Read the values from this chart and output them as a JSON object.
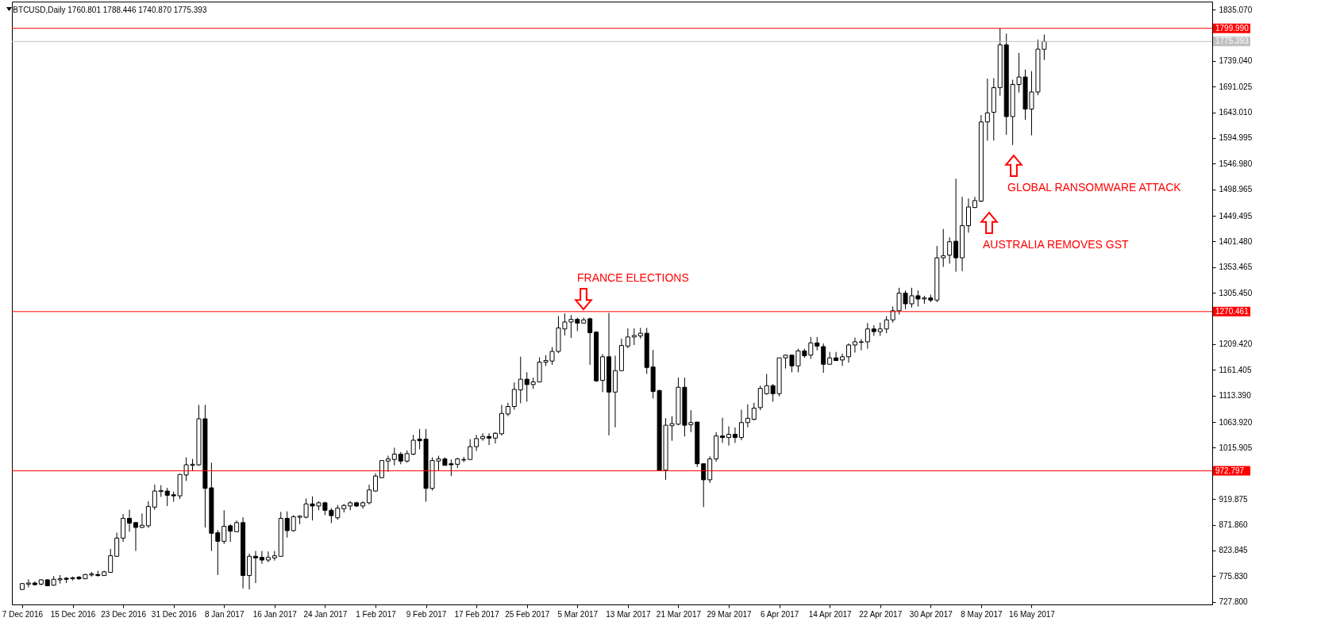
{
  "chart_data": {
    "type": "candlestick",
    "title": "BTCUSD,Daily  1760.801 1788.446 1740.870 1775.393",
    "x": [
      "2016-12-07",
      "2016-12-08",
      "2016-12-09",
      "2016-12-10",
      "2016-12-11",
      "2016-12-12",
      "2016-12-13",
      "2016-12-14",
      "2016-12-15",
      "2016-12-16",
      "2016-12-17",
      "2016-12-18",
      "2016-12-19",
      "2016-12-20",
      "2016-12-21",
      "2016-12-22",
      "2016-12-23",
      "2016-12-24",
      "2016-12-25",
      "2016-12-26",
      "2016-12-27",
      "2016-12-28",
      "2016-12-29",
      "2016-12-30",
      "2016-12-31",
      "2017-01-01",
      "2017-01-02",
      "2017-01-03",
      "2017-01-04",
      "2017-01-05",
      "2017-01-06",
      "2017-01-07",
      "2017-01-08",
      "2017-01-09",
      "2017-01-10",
      "2017-01-11",
      "2017-01-12",
      "2017-01-13",
      "2017-01-14",
      "2017-01-15",
      "2017-01-16",
      "2017-01-17",
      "2017-01-18",
      "2017-01-19",
      "2017-01-20",
      "2017-01-21",
      "2017-01-22",
      "2017-01-23",
      "2017-01-24",
      "2017-01-25",
      "2017-01-26",
      "2017-01-27",
      "2017-01-28",
      "2017-01-29",
      "2017-01-30",
      "2017-01-31",
      "2017-02-01",
      "2017-02-02",
      "2017-02-03",
      "2017-02-04",
      "2017-02-05",
      "2017-02-06",
      "2017-02-07",
      "2017-02-08",
      "2017-02-09",
      "2017-02-10",
      "2017-02-11",
      "2017-02-12",
      "2017-02-13",
      "2017-02-14",
      "2017-02-15",
      "2017-02-16",
      "2017-02-17",
      "2017-02-18",
      "2017-02-19",
      "2017-02-20",
      "2017-02-21",
      "2017-02-22",
      "2017-02-23",
      "2017-02-24",
      "2017-02-25",
      "2017-02-26",
      "2017-02-27",
      "2017-02-28",
      "2017-03-01",
      "2017-03-02",
      "2017-03-03",
      "2017-03-04",
      "2017-03-05",
      "2017-03-06",
      "2017-03-07",
      "2017-03-08",
      "2017-03-09",
      "2017-03-10",
      "2017-03-11",
      "2017-03-12",
      "2017-03-13",
      "2017-03-14",
      "2017-03-15",
      "2017-03-16",
      "2017-03-17",
      "2017-03-18",
      "2017-03-19",
      "2017-03-20",
      "2017-03-21",
      "2017-03-22",
      "2017-03-23",
      "2017-03-24",
      "2017-03-25",
      "2017-03-26",
      "2017-03-27",
      "2017-03-28",
      "2017-03-29",
      "2017-03-30",
      "2017-03-31",
      "2017-04-01",
      "2017-04-02",
      "2017-04-03",
      "2017-04-04",
      "2017-04-05",
      "2017-04-06",
      "2017-04-07",
      "2017-04-08",
      "2017-04-09",
      "2017-04-10",
      "2017-04-11",
      "2017-04-12",
      "2017-04-13",
      "2017-04-14",
      "2017-04-15",
      "2017-04-16",
      "2017-04-17",
      "2017-04-18",
      "2017-04-19",
      "2017-04-20",
      "2017-04-21",
      "2017-04-22",
      "2017-04-23",
      "2017-04-24",
      "2017-04-25",
      "2017-04-26",
      "2017-04-27",
      "2017-04-28",
      "2017-04-29",
      "2017-04-30",
      "2017-05-01",
      "2017-05-02",
      "2017-05-03",
      "2017-05-04",
      "2017-05-05",
      "2017-05-06",
      "2017-05-07",
      "2017-05-08",
      "2017-05-09",
      "2017-05-10",
      "2017-05-11",
      "2017-05-12",
      "2017-05-13",
      "2017-05-14",
      "2017-05-15",
      "2017-05-16",
      "2017-05-17",
      "2017-05-18"
    ],
    "ohlc": [
      [
        751,
        763,
        750,
        762
      ],
      [
        761,
        770,
        755,
        763
      ],
      [
        763,
        766,
        758,
        760
      ],
      [
        761,
        770,
        759,
        769
      ],
      [
        769,
        770,
        757,
        758
      ],
      [
        759,
        776,
        758,
        770
      ],
      [
        769,
        778,
        762,
        771
      ],
      [
        772,
        774,
        763,
        770
      ],
      [
        771,
        775,
        768,
        773
      ],
      [
        774,
        776,
        769,
        771
      ],
      [
        771,
        780,
        771,
        779
      ],
      [
        778,
        784,
        775,
        780
      ],
      [
        779,
        786,
        775,
        777
      ],
      [
        777,
        786,
        777,
        784
      ],
      [
        783,
        827,
        782,
        814
      ],
      [
        813,
        857,
        812,
        847
      ],
      [
        847,
        892,
        840,
        884
      ],
      [
        884,
        900,
        859,
        875
      ],
      [
        876,
        877,
        823,
        867
      ],
      [
        867,
        893,
        866,
        871
      ],
      [
        870,
        916,
        866,
        906
      ],
      [
        905,
        947,
        900,
        935
      ],
      [
        934,
        946,
        924,
        936
      ],
      [
        935,
        941,
        907,
        927
      ],
      [
        928,
        934,
        915,
        926
      ],
      [
        926,
        967,
        920,
        966
      ],
      [
        965,
        998,
        954,
        984
      ],
      [
        983,
        995,
        973,
        985
      ],
      [
        984,
        1096,
        982,
        1070
      ],
      [
        1070,
        1096,
        867,
        940
      ],
      [
        941,
        988,
        823,
        856
      ],
      [
        857,
        862,
        778,
        841
      ],
      [
        841,
        899,
        836,
        869
      ],
      [
        870,
        873,
        840,
        860
      ],
      [
        859,
        880,
        858,
        876
      ],
      [
        876,
        886,
        753,
        777
      ],
      [
        777,
        818,
        751,
        813
      ],
      [
        813,
        823,
        763,
        810
      ],
      [
        811,
        823,
        799,
        806
      ],
      [
        806,
        822,
        802,
        811
      ],
      [
        810,
        823,
        805,
        814
      ],
      [
        813,
        896,
        812,
        884
      ],
      [
        884,
        897,
        848,
        861
      ],
      [
        861,
        890,
        859,
        887
      ],
      [
        886,
        890,
        873,
        888
      ],
      [
        886,
        921,
        884,
        911
      ],
      [
        911,
        925,
        880,
        907
      ],
      [
        907,
        916,
        899,
        913
      ],
      [
        913,
        915,
        890,
        899
      ],
      [
        899,
        903,
        875,
        889
      ],
      [
        885,
        909,
        881,
        903
      ],
      [
        902,
        911,
        895,
        908
      ],
      [
        907,
        916,
        899,
        913
      ],
      [
        913,
        915,
        905,
        907
      ],
      [
        907,
        916,
        902,
        913
      ],
      [
        913,
        947,
        910,
        937
      ],
      [
        935,
        968,
        934,
        963
      ],
      [
        960,
        992,
        959,
        992
      ],
      [
        991,
        1001,
        971,
        995
      ],
      [
        994,
        1016,
        983,
        1004
      ],
      [
        1004,
        1008,
        985,
        991
      ],
      [
        991,
        1011,
        988,
        1005
      ],
      [
        1004,
        1040,
        1002,
        1030
      ],
      [
        1032,
        1051,
        1013,
        1029
      ],
      [
        1032,
        1051,
        915,
        940
      ],
      [
        940,
        998,
        936,
        992
      ],
      [
        991,
        1001,
        973,
        995
      ],
      [
        995,
        998,
        983,
        983
      ],
      [
        986,
        994,
        963,
        984
      ],
      [
        985,
        997,
        978,
        995
      ],
      [
        993,
        999,
        989,
        994
      ],
      [
        994,
        1032,
        994,
        1018
      ],
      [
        1018,
        1040,
        1010,
        1033
      ],
      [
        1033,
        1043,
        1029,
        1037
      ],
      [
        1037,
        1043,
        1021,
        1034
      ],
      [
        1034,
        1045,
        1024,
        1043
      ],
      [
        1042,
        1096,
        1039,
        1080
      ],
      [
        1079,
        1100,
        1075,
        1093
      ],
      [
        1093,
        1138,
        1087,
        1125
      ],
      [
        1124,
        1186,
        1099,
        1144
      ],
      [
        1144,
        1157,
        1102,
        1134
      ],
      [
        1134,
        1147,
        1126,
        1139
      ],
      [
        1139,
        1185,
        1139,
        1176
      ],
      [
        1176,
        1189,
        1169,
        1179
      ],
      [
        1178,
        1204,
        1171,
        1196
      ],
      [
        1196,
        1262,
        1193,
        1240
      ],
      [
        1238,
        1267,
        1226,
        1251
      ],
      [
        1251,
        1264,
        1221,
        1256
      ],
      [
        1256,
        1259,
        1234,
        1249
      ],
      [
        1249,
        1259,
        1249,
        1255
      ],
      [
        1257,
        1259,
        1171,
        1231
      ],
      [
        1232,
        1234,
        1139,
        1141
      ],
      [
        1142,
        1191,
        1120,
        1186
      ],
      [
        1186,
        1268,
        1039,
        1120
      ],
      [
        1120,
        1188,
        1054,
        1160
      ],
      [
        1160,
        1220,
        1160,
        1207
      ],
      [
        1206,
        1239,
        1202,
        1223
      ],
      [
        1223,
        1239,
        1208,
        1226
      ],
      [
        1225,
        1240,
        1220,
        1230
      ],
      [
        1230,
        1240,
        1154,
        1166
      ],
      [
        1167,
        1199,
        1108,
        1121
      ],
      [
        1123,
        1124,
        973,
        973
      ],
      [
        974,
        1071,
        956,
        1058
      ],
      [
        1057,
        1075,
        1029,
        1061
      ],
      [
        1060,
        1147,
        1058,
        1129
      ],
      [
        1129,
        1147,
        1037,
        1058
      ],
      [
        1059,
        1086,
        1045,
        1063
      ],
      [
        1064,
        1064,
        980,
        986
      ],
      [
        986,
        986,
        905,
        956
      ],
      [
        956,
        1000,
        950,
        995
      ],
      [
        995,
        1045,
        990,
        1038
      ],
      [
        1038,
        1072,
        1025,
        1035
      ],
      [
        1035,
        1056,
        1020,
        1041
      ],
      [
        1041,
        1054,
        1025,
        1035
      ],
      [
        1035,
        1087,
        1030,
        1063
      ],
      [
        1063,
        1097,
        1054,
        1071
      ],
      [
        1069,
        1100,
        1067,
        1090
      ],
      [
        1091,
        1132,
        1086,
        1127
      ],
      [
        1117,
        1154,
        1115,
        1132
      ],
      [
        1132,
        1135,
        1102,
        1117
      ],
      [
        1117,
        1184,
        1112,
        1184
      ],
      [
        1184,
        1190,
        1164,
        1189
      ],
      [
        1189,
        1190,
        1157,
        1169
      ],
      [
        1169,
        1201,
        1157,
        1197
      ],
      [
        1197,
        1201,
        1184,
        1188
      ],
      [
        1189,
        1223,
        1182,
        1212
      ],
      [
        1212,
        1223,
        1198,
        1206
      ],
      [
        1205,
        1211,
        1156,
        1172
      ],
      [
        1172,
        1195,
        1172,
        1184
      ],
      [
        1184,
        1195,
        1178,
        1179
      ],
      [
        1180,
        1192,
        1169,
        1186
      ],
      [
        1186,
        1211,
        1175,
        1208
      ],
      [
        1208,
        1222,
        1194,
        1214
      ],
      [
        1213,
        1219,
        1198,
        1214
      ],
      [
        1214,
        1249,
        1201,
        1238
      ],
      [
        1238,
        1245,
        1225,
        1233
      ],
      [
        1233,
        1250,
        1225,
        1238
      ],
      [
        1238,
        1262,
        1230,
        1255
      ],
      [
        1255,
        1280,
        1250,
        1272
      ],
      [
        1272,
        1315,
        1265,
        1305
      ],
      [
        1305,
        1310,
        1275,
        1285
      ],
      [
        1285,
        1315,
        1278,
        1300
      ],
      [
        1300,
        1310,
        1280,
        1294
      ],
      [
        1294,
        1300,
        1285,
        1296
      ],
      [
        1296,
        1302,
        1288,
        1292
      ],
      [
        1292,
        1393,
        1288,
        1371
      ],
      [
        1371,
        1425,
        1354,
        1375
      ],
      [
        1376,
        1409,
        1360,
        1401
      ],
      [
        1402,
        1519,
        1345,
        1371
      ],
      [
        1371,
        1485,
        1346,
        1431
      ],
      [
        1431,
        1482,
        1418,
        1466
      ],
      [
        1465,
        1485,
        1464,
        1478
      ],
      [
        1477,
        1638,
        1475,
        1625
      ],
      [
        1625,
        1706,
        1590,
        1642
      ],
      [
        1643,
        1707,
        1590,
        1689
      ],
      [
        1689,
        1799.99,
        1674,
        1769
      ],
      [
        1769,
        1790,
        1601,
        1635
      ],
      [
        1635,
        1704,
        1582,
        1695
      ],
      [
        1695,
        1754,
        1680,
        1709
      ],
      [
        1709,
        1723,
        1629,
        1649
      ],
      [
        1649,
        1720,
        1600,
        1681
      ],
      [
        1681,
        1779,
        1675,
        1761
      ],
      [
        1760.801,
        1788.446,
        1740.87,
        1775.393
      ]
    ],
    "xlim": [
      "2016-12-06",
      "2017-06-13"
    ],
    "xticks": [
      {
        "value": "2016-12-07",
        "label": "7 Dec 2016"
      },
      {
        "value": "2016-12-15",
        "label": "15 Dec 2016"
      },
      {
        "value": "2016-12-23",
        "label": "23 Dec 2016"
      },
      {
        "value": "2016-12-31",
        "label": "31 Dec 2016"
      },
      {
        "value": "2017-01-08",
        "label": "8 Jan 2017"
      },
      {
        "value": "2017-01-16",
        "label": "16 Jan 2017"
      },
      {
        "value": "2017-01-24",
        "label": "24 Jan 2017"
      },
      {
        "value": "2017-02-01",
        "label": "1 Feb 2017"
      },
      {
        "value": "2017-02-09",
        "label": "9 Feb 2017"
      },
      {
        "value": "2017-02-17",
        "label": "17 Feb 2017"
      },
      {
        "value": "2017-02-25",
        "label": "25 Feb 2017"
      },
      {
        "value": "2017-03-05",
        "label": "5 Mar 2017"
      },
      {
        "value": "2017-03-13",
        "label": "13 Mar 2017"
      },
      {
        "value": "2017-03-21",
        "label": "21 Mar 2017"
      },
      {
        "value": "2017-03-29",
        "label": "29 Mar 2017"
      },
      {
        "value": "2017-04-06",
        "label": "6 Apr 2017"
      },
      {
        "value": "2017-04-14",
        "label": "14 Apr 2017"
      },
      {
        "value": "2017-04-22",
        "label": "22 Apr 2017"
      },
      {
        "value": "2017-04-30",
        "label": "30 Apr 2017"
      },
      {
        "value": "2017-05-08",
        "label": "8 May 2017"
      },
      {
        "value": "2017-05-16",
        "label": "16 May 2017"
      }
    ],
    "ylim": [
      723,
      1850
    ],
    "yticks": [
      {
        "value": 727.8,
        "label": "727.800"
      },
      {
        "value": 775.83,
        "label": "775.830"
      },
      {
        "value": 823.845,
        "label": "823.845"
      },
      {
        "value": 871.86,
        "label": "871.860"
      },
      {
        "value": 919.875,
        "label": "919.875"
      },
      {
        "value": 1015.905,
        "label": "1015.905"
      },
      {
        "value": 1063.92,
        "label": "1063.920"
      },
      {
        "value": 1113.39,
        "label": "1113.390"
      },
      {
        "value": 1161.405,
        "label": "1161.405"
      },
      {
        "value": 1209.42,
        "label": "1209.420"
      },
      {
        "value": 1305.45,
        "label": "1305.450"
      },
      {
        "value": 1353.465,
        "label": "1353.465"
      },
      {
        "value": 1401.48,
        "label": "1401.480"
      },
      {
        "value": 1449.495,
        "label": "1449.495"
      },
      {
        "value": 1498.965,
        "label": "1498.965"
      },
      {
        "value": 1546.98,
        "label": "1546.980"
      },
      {
        "value": 1594.995,
        "label": "1594.995"
      },
      {
        "value": 1643.01,
        "label": "1643.010"
      },
      {
        "value": 1691.025,
        "label": "1691.025"
      },
      {
        "value": 1739.04,
        "label": "1739.040"
      },
      {
        "value": 1835.07,
        "label": "1835.070"
      }
    ],
    "ref_lines": [
      {
        "axis": "y",
        "value": 1799.99,
        "label": "1799.990",
        "color": "#ff0000"
      },
      {
        "axis": "y",
        "value": 1775.393,
        "label": "1775.393",
        "color": "#c0c0c0"
      },
      {
        "axis": "y",
        "value": 1270.461,
        "label": "1270.461",
        "color": "#ff0000"
      },
      {
        "axis": "y",
        "value": 972.797,
        "label": "972.797",
        "color": "#ff0000"
      }
    ],
    "annotations": [
      "FRANCE ELECTIONS",
      "AUSTRALIA REMOVES GST",
      "GLOBAL RANSOMWARE ATTACK"
    ]
  }
}
